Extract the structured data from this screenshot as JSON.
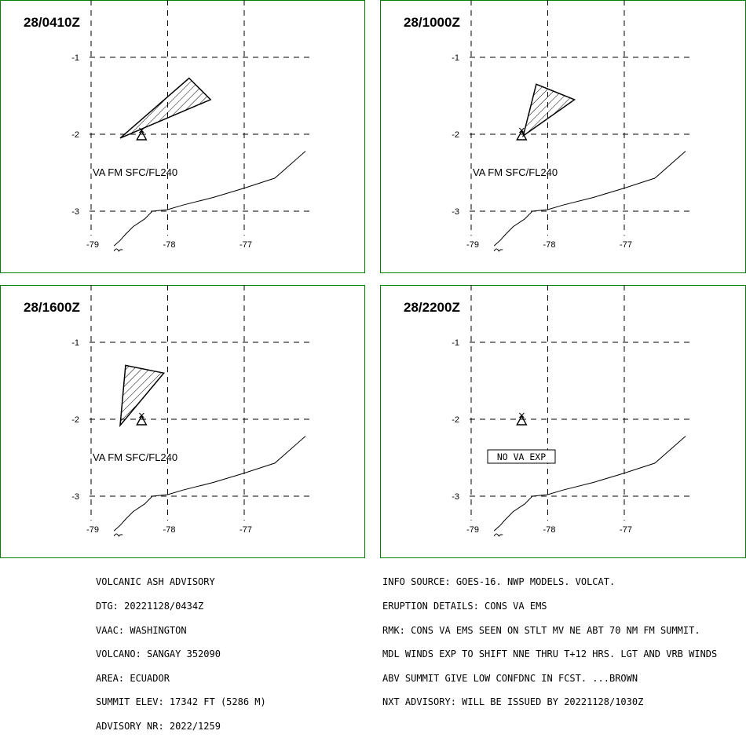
{
  "panels": [
    {
      "time": "28/0410Z",
      "ash_label": "VA FM SFC/FL240",
      "ash_polygon": [
        [
          -78.62,
          -2.05
        ],
        [
          -77.72,
          -1.27
        ],
        [
          -77.44,
          -1.55
        ],
        [
          -78.62,
          -2.05
        ]
      ]
    },
    {
      "time": "28/1000Z",
      "ash_label": "VA FM SFC/FL240",
      "ash_polygon": [
        [
          -78.32,
          -2.02
        ],
        [
          -78.15,
          -1.35
        ],
        [
          -77.65,
          -1.55
        ],
        [
          -78.32,
          -2.02
        ]
      ]
    },
    {
      "time": "28/1600Z",
      "ash_label": "VA FM SFC/FL240",
      "ash_polygon": [
        [
          -78.62,
          -2.08
        ],
        [
          -78.55,
          -1.3
        ],
        [
          -78.05,
          -1.4
        ],
        [
          -78.62,
          -2.08
        ]
      ]
    },
    {
      "time": "28/2200Z",
      "ash_label": "NO VA EXP",
      "ash_polygon": []
    }
  ],
  "map": {
    "lon_ticks": [
      "-79",
      "-78",
      "-77"
    ],
    "lat_ticks": [
      "-1",
      "-2",
      "-3"
    ],
    "lon_values": [
      -79,
      -78,
      -77
    ],
    "lat_values": [
      -1,
      -2,
      -3
    ],
    "volcano": {
      "lon": -78.34,
      "lat": -2.0
    },
    "coastline": [
      [
        -78.7,
        -3.45
      ],
      [
        -78.62,
        -3.38
      ],
      [
        -78.55,
        -3.3
      ],
      [
        -78.45,
        -3.2
      ],
      [
        -78.3,
        -3.1
      ],
      [
        -78.2,
        -3.0
      ],
      [
        -78.0,
        -2.98
      ],
      [
        -77.8,
        -2.92
      ],
      [
        -77.4,
        -2.82
      ],
      [
        -77.0,
        -2.7
      ],
      [
        -76.6,
        -2.57
      ],
      [
        -76.2,
        -2.22
      ]
    ]
  },
  "footer_left": [
    "VOLCANIC ASH ADVISORY",
    "DTG: 20221128/0434Z",
    "VAAC: WASHINGTON",
    "VOLCANO: SANGAY 352090",
    "AREA: ECUADOR",
    "SUMMIT ELEV: 17342 FT (5286 M)",
    "ADVISORY NR: 2022/1259"
  ],
  "footer_right": [
    "INFO SOURCE: GOES-16. NWP MODELS. VOLCAT.",
    "ERUPTION DETAILS: CONS VA EMS",
    "RMK: CONS VA EMS SEEN ON STLT MV NE ABT 70 NM FM SUMMIT.",
    "MDL WINDS EXP TO SHIFT NNE THRU T+12 HRS. LGT AND VRB WINDS",
    "ABV SUMMIT GIVE LOW CONFDNC IN FCST. ...BROWN",
    "NXT ADVISORY: WILL BE ISSUED BY 20221128/1030Z"
  ],
  "colors": {
    "panel_border": "#008000",
    "ink": "#000000",
    "background": "#ffffff"
  }
}
